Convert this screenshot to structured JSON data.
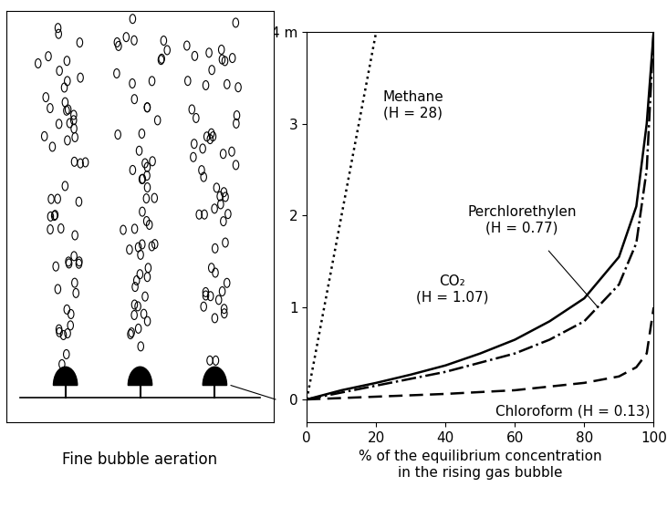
{
  "chart_data": {
    "type": "line",
    "x_label": "% of the equilibrium concentration\nin the rising gas bubble",
    "xlim": [
      0,
      100
    ],
    "xticks": [
      0,
      20,
      40,
      60,
      80,
      100
    ],
    "ylim": [
      -0.25,
      4
    ],
    "yticks": [
      0,
      1,
      2,
      3,
      {
        "value": 4,
        "label": "4 m"
      }
    ],
    "grid": false,
    "series": [
      {
        "name": "Methane\n(H = 28)",
        "color": "#000000",
        "line_style": "dotted",
        "x": [
          0,
          20
        ],
        "values": [
          0,
          4
        ]
      },
      {
        "name": "Perchlorethylen\n(H = 0.77)",
        "color": "#000000",
        "line_style": "dashdot",
        "x": [
          0,
          20,
          40,
          60,
          70,
          80,
          90,
          95,
          98,
          100
        ],
        "values": [
          0,
          0.15,
          0.3,
          0.5,
          0.65,
          0.85,
          1.25,
          1.7,
          2.5,
          4
        ]
      },
      {
        "name": "CO₂\n(H = 1.07)",
        "color": "#000000",
        "line_style": "solid",
        "x": [
          0,
          10,
          20,
          30,
          40,
          50,
          60,
          70,
          80,
          90,
          95,
          98,
          100
        ],
        "values": [
          0,
          0.1,
          0.18,
          0.27,
          0.37,
          0.5,
          0.65,
          0.85,
          1.1,
          1.55,
          2.1,
          3,
          4
        ]
      },
      {
        "name": "Chloroform (H = 0.13)",
        "color": "#000000",
        "line_style": "dashed",
        "x": [
          0,
          20,
          40,
          60,
          80,
          90,
          95,
          98,
          100
        ],
        "values": [
          0,
          0.03,
          0.06,
          0.1,
          0.18,
          0.25,
          0.35,
          0.5,
          1.0
        ]
      }
    ]
  },
  "illustration": {
    "caption": "Fine bubble aeration"
  }
}
